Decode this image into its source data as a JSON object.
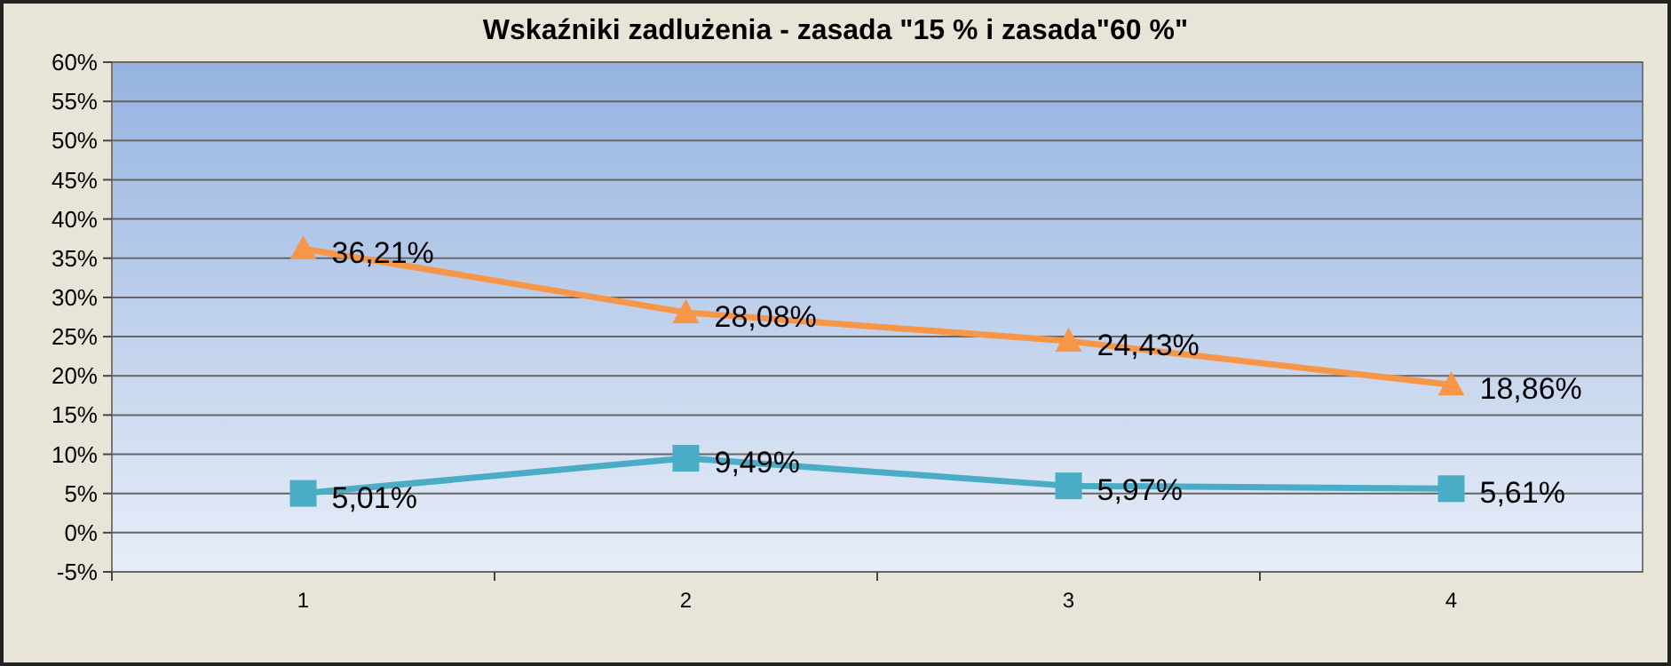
{
  "chart_data": {
    "type": "line",
    "title": "Wskaźniki zadlużenia - zasada \"15 % i zasada\"60 %\"",
    "categories": [
      "1",
      "2",
      "3",
      "4"
    ],
    "series": [
      {
        "color": "#f79646",
        "marker": "triangle",
        "values": [
          36.21,
          28.08,
          24.43,
          18.86
        ],
        "value_labels": [
          "36,21%",
          "28,08%",
          "24,43%",
          "18,86%"
        ]
      },
      {
        "color": "#4bacc6",
        "marker": "square",
        "values": [
          5.01,
          9.49,
          5.97,
          5.61
        ],
        "value_labels": [
          "5,01%",
          "9,49%",
          "5,97%",
          "5,61%"
        ]
      }
    ],
    "ylim": [
      -5,
      60
    ],
    "yticks": [
      {
        "value": -5,
        "label": "-5%"
      },
      {
        "value": 0,
        "label": "0%"
      },
      {
        "value": 5,
        "label": "5%"
      },
      {
        "value": 10,
        "label": "10%"
      },
      {
        "value": 15,
        "label": "15%"
      },
      {
        "value": 20,
        "label": "20%"
      },
      {
        "value": 25,
        "label": "25%"
      },
      {
        "value": 30,
        "label": "30%"
      },
      {
        "value": 35,
        "label": "35%"
      },
      {
        "value": 40,
        "label": "40%"
      },
      {
        "value": 45,
        "label": "45%"
      },
      {
        "value": 50,
        "label": "50%"
      },
      {
        "value": 55,
        "label": "55%"
      },
      {
        "value": 60,
        "label": "60%"
      }
    ],
    "grid": "y",
    "line_style": "solid"
  }
}
